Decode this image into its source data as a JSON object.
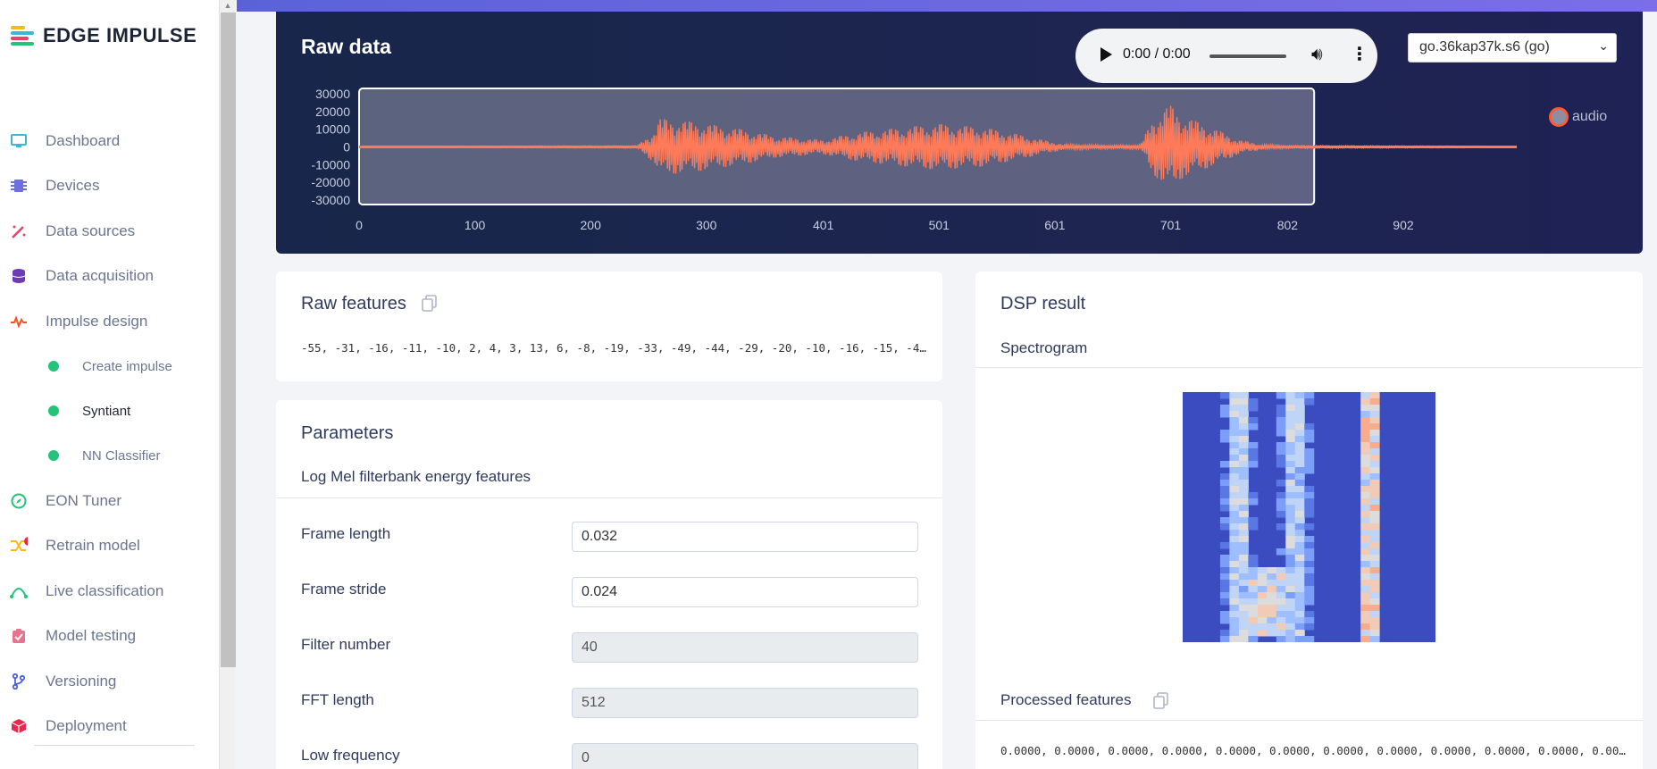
{
  "app": {
    "logo_text": "EDGE IMPULSE"
  },
  "sidebar": {
    "items": [
      {
        "label": "Dashboard",
        "icon": "monitor-icon",
        "color": "#3bb8d6"
      },
      {
        "label": "Devices",
        "icon": "chip-icon",
        "color": "#6b6fe0"
      },
      {
        "label": "Data sources",
        "icon": "magic-wand-icon",
        "color": "#e8416a"
      },
      {
        "label": "Data acquisition",
        "icon": "database-icon",
        "color": "#6d3ab8"
      },
      {
        "label": "Impulse design",
        "icon": "pulse-icon",
        "color": "#f0562e"
      },
      {
        "label": "Create impulse",
        "sub": true
      },
      {
        "label": "Syntiant",
        "sub": true,
        "active": true
      },
      {
        "label": "NN Classifier",
        "sub": true
      },
      {
        "label": "EON Tuner",
        "icon": "compass-icon",
        "color": "#22c47a"
      },
      {
        "label": "Retrain model",
        "icon": "shuffle-icon",
        "color": "#f5b921"
      },
      {
        "label": "Live classification",
        "icon": "signal-icon",
        "color": "#22c47a"
      },
      {
        "label": "Model testing",
        "icon": "clipboard-check-icon",
        "color": "#e8738f"
      },
      {
        "label": "Versioning",
        "icon": "branch-icon",
        "color": "#4a5fd8"
      },
      {
        "label": "Deployment",
        "icon": "box-icon",
        "color": "#e8284e"
      }
    ]
  },
  "raw_data": {
    "title": "Raw data",
    "player_time": "0:00 / 0:00",
    "sample_name": "go.36kap37k.s6 (go)",
    "legend_label": "audio",
    "chart_data": {
      "type": "line",
      "series": [
        {
          "name": "audio"
        }
      ],
      "x_ticks": [
        "0",
        "100",
        "200",
        "300",
        "401",
        "501",
        "601",
        "701",
        "802",
        "902"
      ],
      "y_ticks": [
        "30000",
        "20000",
        "10000",
        "0",
        "-10000",
        "-20000",
        "-30000"
      ],
      "ylim": [
        -30000,
        30000
      ],
      "xlim": [
        0,
        1000
      ],
      "selection_window_ms": [
        0,
        825
      ],
      "envelope": [
        [
          0,
          300
        ],
        [
          240,
          600
        ],
        [
          255,
          9000
        ],
        [
          260,
          16000
        ],
        [
          290,
          14000
        ],
        [
          330,
          10000
        ],
        [
          360,
          6000
        ],
        [
          400,
          4000
        ],
        [
          430,
          8000
        ],
        [
          470,
          11000
        ],
        [
          500,
          13000
        ],
        [
          540,
          11000
        ],
        [
          570,
          7000
        ],
        [
          590,
          4000
        ],
        [
          610,
          1500
        ],
        [
          650,
          1000
        ],
        [
          675,
          1200
        ],
        [
          685,
          15000
        ],
        [
          700,
          24000
        ],
        [
          710,
          18000
        ],
        [
          740,
          10000
        ],
        [
          760,
          4000
        ],
        [
          780,
          1500
        ],
        [
          800,
          800
        ],
        [
          1000,
          300
        ]
      ],
      "line_color": "#ff7a59"
    }
  },
  "raw_features": {
    "title": "Raw features",
    "values": "-55, -31, -16, -11, -10, 2, 4, 3, 13, 6, -8, -19, -33, -49, -44, -29, -20, -10, -16, -15, -4…"
  },
  "parameters": {
    "title": "Parameters",
    "subtitle": "Log Mel filterbank energy features",
    "rows": [
      {
        "label": "Frame length",
        "value": "0.032",
        "disabled": false
      },
      {
        "label": "Frame stride",
        "value": "0.024",
        "disabled": false
      },
      {
        "label": "Filter number",
        "value": "40",
        "disabled": true
      },
      {
        "label": "FFT length",
        "value": "512",
        "disabled": true
      },
      {
        "label": "Low frequency",
        "value": "0",
        "disabled": true
      }
    ]
  },
  "dsp": {
    "title": "DSP result",
    "spectrogram_label": "Spectrogram",
    "processed_label": "Processed features",
    "processed_values": "0.0000, 0.0000, 0.0000, 0.0000, 0.0000, 0.0000, 0.0000, 0.0000, 0.0000, 0.0000, 0.0000, 0.00…"
  }
}
